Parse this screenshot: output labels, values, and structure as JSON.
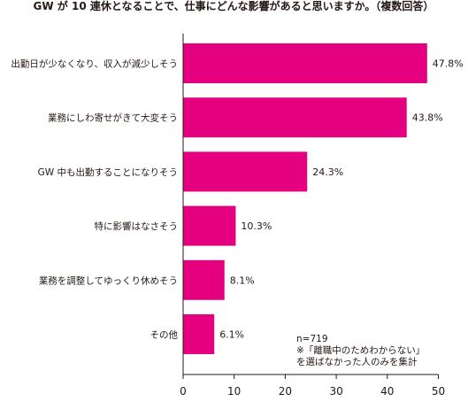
{
  "chart_data": {
    "type": "bar",
    "orientation": "horizontal",
    "title": "GW が 10 連休となることで、仕事にどんな影響があると思いますか。（複数回答）",
    "categories": [
      "出勤日が少なくなり、収入が減少しそう",
      "業務にしわ寄せがきて大変そう",
      "GW 中も出勤することになりそう",
      "特に影響はなさそう",
      "業務を調整してゆっくり休めそう",
      "その他"
    ],
    "values": [
      47.8,
      43.8,
      24.3,
      10.3,
      8.1,
      6.1
    ],
    "value_labels": [
      "47.8%",
      "43.8%",
      "24.3%",
      "10.3%",
      "8.1%",
      "6.1%"
    ],
    "xlim": [
      0,
      50
    ],
    "xticks": [
      "0",
      "10",
      "20",
      "30",
      "40",
      "50"
    ],
    "bar_color": "#e4007f",
    "grid": false,
    "notes": [
      "n=719",
      "※「離職中のためわからない」",
      "を選ばなかった人のみを集計"
    ]
  }
}
